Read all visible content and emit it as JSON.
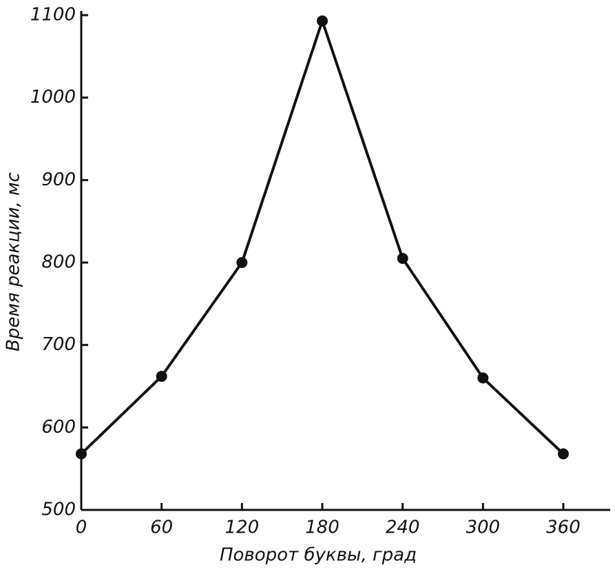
{
  "chart_data": {
    "type": "line",
    "x_label": "Поворот буквы, град",
    "y_label": "Время реакции, мс",
    "x": [
      0,
      60,
      120,
      180,
      240,
      300,
      360
    ],
    "series": [
      {
        "color": "#111111",
        "values": [
          568,
          662,
          800,
          1093,
          805,
          660,
          568
        ]
      }
    ],
    "xlim": [
      0,
      395
    ],
    "xticks": [
      0,
      60,
      120,
      180,
      240,
      300,
      360
    ],
    "ylim": [
      500,
      1105
    ],
    "yticks": [
      500,
      600,
      700,
      800,
      900,
      1000,
      1100
    ],
    "grid": false
  }
}
